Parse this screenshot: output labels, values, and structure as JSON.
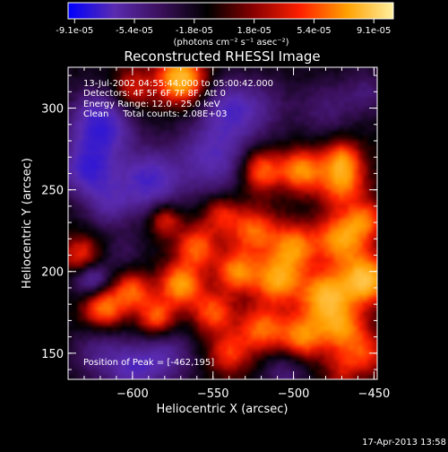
{
  "chart_data": {
    "type": "heatmap",
    "title": "Reconstructed RHESSI Image",
    "colorbar": {
      "tick_labels": [
        "-9.1e-05",
        "-5.4e-05",
        "-1.8e-05",
        "1.8e-05",
        "5.4e-05",
        "9.1e-05"
      ],
      "units": "(photons cm⁻² s⁻¹ asec⁻²)",
      "range": [
        -9.1e-05,
        9.1e-05
      ],
      "colormap": [
        "#0000ff",
        "#5a2bb0",
        "#3a0f5a",
        "#000000",
        "#8a0000",
        "#ff2000",
        "#ffa000",
        "#fff0a0"
      ]
    },
    "annotations": {
      "time": "13-Jul-2002 04:55:44.000 to 05:00:42.000",
      "detectors": "Detectors: 4F 5F 6F 7F 8F, Att 0",
      "energy": "Energy Range: 12.0 - 25.0 keV",
      "method_counts": "Clean     Total counts: 2.08E+03",
      "peak": "Position of Peak = [-462,195]"
    },
    "xlabel": "Heliocentric X (arcsec)",
    "ylabel": "Heliocentric Y (arcsec)",
    "xlim": [
      -640,
      -448
    ],
    "ylim": [
      134,
      325
    ],
    "xticks": [
      -600,
      -550,
      -500,
      -450
    ],
    "xtick_labels": [
      "−600",
      "−550",
      "−500",
      "−450"
    ],
    "yticks": [
      150,
      200,
      250,
      300
    ],
    "ytick_labels": [
      "150",
      "200",
      "250",
      "300"
    ],
    "peak_position": [
      -462,
      195
    ],
    "blobs": [
      {
        "x": -570,
        "y": 318,
        "amp": 1.1,
        "w": 10
      },
      {
        "x": -600,
        "y": 312,
        "amp": 0.5,
        "w": 9
      },
      {
        "x": -520,
        "y": 300,
        "amp": -0.3,
        "w": 14
      },
      {
        "x": -620,
        "y": 290,
        "amp": -0.8,
        "w": 14
      },
      {
        "x": -628,
        "y": 262,
        "amp": -0.7,
        "w": 12
      },
      {
        "x": -590,
        "y": 255,
        "amp": -0.7,
        "w": 14
      },
      {
        "x": -550,
        "y": 270,
        "amp": -0.6,
        "w": 16
      },
      {
        "x": -615,
        "y": 240,
        "amp": -0.4,
        "w": 10
      },
      {
        "x": -520,
        "y": 262,
        "amp": 0.75,
        "w": 9
      },
      {
        "x": -495,
        "y": 262,
        "amp": 0.85,
        "w": 9
      },
      {
        "x": -470,
        "y": 255,
        "amp": 0.8,
        "w": 10
      },
      {
        "x": -470,
        "y": 270,
        "amp": 0.6,
        "w": 8
      },
      {
        "x": -545,
        "y": 235,
        "amp": 0.5,
        "w": 8
      },
      {
        "x": -525,
        "y": 225,
        "amp": 0.7,
        "w": 10
      },
      {
        "x": -500,
        "y": 215,
        "amp": 0.8,
        "w": 10
      },
      {
        "x": -470,
        "y": 220,
        "amp": 0.9,
        "w": 11
      },
      {
        "x": -455,
        "y": 195,
        "amp": 1.1,
        "w": 10
      },
      {
        "x": -480,
        "y": 185,
        "amp": 1.0,
        "w": 11
      },
      {
        "x": -510,
        "y": 195,
        "amp": 0.9,
        "w": 10
      },
      {
        "x": -535,
        "y": 200,
        "amp": 0.8,
        "w": 9
      },
      {
        "x": -560,
        "y": 215,
        "amp": 0.7,
        "w": 9
      },
      {
        "x": -580,
        "y": 232,
        "amp": 0.55,
        "w": 7
      },
      {
        "x": -570,
        "y": 192,
        "amp": 0.9,
        "w": 9
      },
      {
        "x": -585,
        "y": 172,
        "amp": 0.7,
        "w": 8
      },
      {
        "x": -618,
        "y": 178,
        "amp": 0.8,
        "w": 9
      },
      {
        "x": -600,
        "y": 188,
        "amp": 0.65,
        "w": 8
      },
      {
        "x": -632,
        "y": 210,
        "amp": 0.55,
        "w": 8
      },
      {
        "x": -605,
        "y": 212,
        "amp": -0.2,
        "w": 8
      },
      {
        "x": -625,
        "y": 195,
        "amp": -0.6,
        "w": 8
      },
      {
        "x": -550,
        "y": 175,
        "amp": 0.65,
        "w": 9
      },
      {
        "x": -520,
        "y": 165,
        "amp": 0.7,
        "w": 10
      },
      {
        "x": -495,
        "y": 160,
        "amp": 0.8,
        "w": 10
      },
      {
        "x": -470,
        "y": 165,
        "amp": 0.75,
        "w": 10
      },
      {
        "x": -455,
        "y": 150,
        "amp": 0.5,
        "w": 9
      },
      {
        "x": -540,
        "y": 150,
        "amp": 0.55,
        "w": 9
      },
      {
        "x": -580,
        "y": 148,
        "amp": -0.5,
        "w": 12
      },
      {
        "x": -620,
        "y": 150,
        "amp": -0.4,
        "w": 12
      },
      {
        "x": -600,
        "y": 140,
        "amp": -0.5,
        "w": 10
      },
      {
        "x": -505,
        "y": 140,
        "amp": -0.35,
        "w": 10
      },
      {
        "x": -470,
        "y": 140,
        "amp": 0.35,
        "w": 8
      },
      {
        "x": -455,
        "y": 232,
        "amp": 0.6,
        "w": 8
      },
      {
        "x": -540,
        "y": 300,
        "amp": -0.5,
        "w": 12
      },
      {
        "x": -480,
        "y": 300,
        "amp": -0.3,
        "w": 12
      },
      {
        "x": -455,
        "y": 310,
        "amp": -0.3,
        "w": 10
      }
    ]
  },
  "footer": {
    "date": "17-Apr-2013 13:58"
  }
}
